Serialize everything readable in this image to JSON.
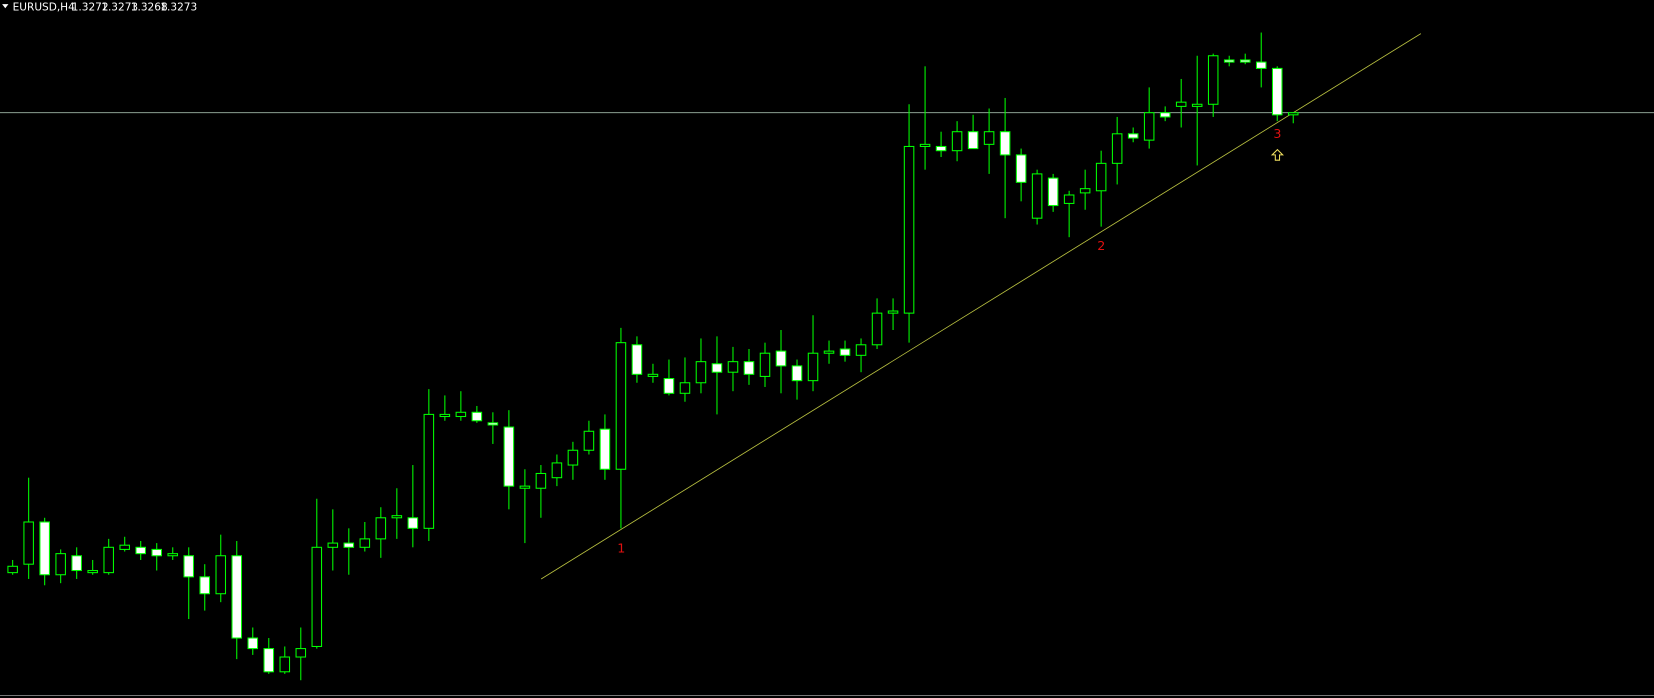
{
  "chart_data": {
    "type": "candlestick",
    "symbol": "EURUSD,H4",
    "ylim": [
      1.2996,
      1.3326
    ],
    "bull_color": "#000000",
    "bear_color": "#ffffff",
    "wick_color": "#00ff00",
    "price_line_color": "#a0b8a8",
    "annotations": [
      "1",
      "2",
      "3"
    ],
    "open": [
      1.3055,
      1.3059,
      1.3079,
      1.3054,
      1.3063,
      1.3055,
      1.3055,
      1.3066,
      1.3067,
      1.3066,
      1.3063,
      1.3063,
      1.3053,
      1.3045,
      1.3063,
      1.3024,
      1.3019,
      1.3008,
      1.3015,
      1.302,
      1.3067,
      1.3069,
      1.3067,
      1.3071,
      1.3081,
      1.3081,
      1.3076,
      1.3129,
      1.3129,
      1.3131,
      1.3126,
      1.3124,
      1.3095,
      1.3095,
      1.31,
      1.3106,
      1.3113,
      1.3123,
      1.3104,
      1.3163,
      1.3148,
      1.3147,
      1.314,
      1.3145,
      1.3154,
      1.315,
      1.3155,
      1.3148,
      1.316,
      1.3153,
      1.3146,
      1.3159,
      1.3161,
      1.3158,
      1.3163,
      1.3178,
      1.3178,
      1.3257,
      1.3257,
      1.3255,
      1.3264,
      1.3258,
      1.3264,
      1.3253,
      1.3223,
      1.3242,
      1.323,
      1.3235,
      1.3236,
      1.3249,
      1.3263,
      1.326,
      1.3273,
      1.3276,
      1.3276,
      1.3277,
      1.3298,
      1.3298,
      1.3297,
      1.3294,
      1.3272
    ],
    "high": [
      1.3061,
      1.31,
      1.3081,
      1.3066,
      1.3067,
      1.3061,
      1.3071,
      1.3072,
      1.307,
      1.3069,
      1.3067,
      1.3067,
      1.3059,
      1.3073,
      1.307,
      1.3029,
      1.3024,
      1.302,
      1.3029,
      1.309,
      1.3085,
      1.3076,
      1.3079,
      1.3086,
      1.3095,
      1.3106,
      1.3142,
      1.3139,
      1.3141,
      1.3134,
      1.3131,
      1.3132,
      1.3104,
      1.3106,
      1.3111,
      1.3117,
      1.3127,
      1.313,
      1.3171,
      1.3167,
      1.3154,
      1.3156,
      1.3157,
      1.3166,
      1.3167,
      1.3162,
      1.3161,
      1.3164,
      1.317,
      1.3156,
      1.3177,
      1.3165,
      1.3165,
      1.3166,
      1.3185,
      1.3185,
      1.3277,
      1.3295,
      1.3264,
      1.3269,
      1.3272,
      1.3275,
      1.328,
      1.3256,
      1.3246,
      1.3244,
      1.3236,
      1.3246,
      1.3255,
      1.3271,
      1.3266,
      1.3285,
      1.3276,
      1.3289,
      1.33,
      1.3301,
      1.33,
      1.3301,
      1.3311,
      1.3295,
      1.3273
    ],
    "low": [
      1.3054,
      1.3052,
      1.3049,
      1.305,
      1.3052,
      1.3054,
      1.3054,
      1.3065,
      1.3061,
      1.3056,
      1.3061,
      1.3033,
      1.3037,
      1.3041,
      1.3014,
      1.3016,
      1.3007,
      1.3007,
      1.3004,
      1.3019,
      1.3056,
      1.3054,
      1.3065,
      1.3062,
      1.3071,
      1.3067,
      1.307,
      1.3127,
      1.3127,
      1.3126,
      1.3116,
      1.3085,
      1.3069,
      1.3081,
      1.3096,
      1.3099,
      1.3111,
      1.3099,
      1.3076,
      1.3145,
      1.3145,
      1.3139,
      1.3136,
      1.314,
      1.313,
      1.3141,
      1.3144,
      1.3143,
      1.314,
      1.3137,
      1.3141,
      1.3154,
      1.3155,
      1.315,
      1.3161,
      1.317,
      1.3164,
      1.3246,
      1.3252,
      1.325,
      1.3256,
      1.3244,
      1.3223,
      1.3231,
      1.322,
      1.3226,
      1.3214,
      1.3227,
      1.3219,
      1.3239,
      1.3259,
      1.3256,
      1.3269,
      1.3266,
      1.3248,
      1.3271,
      1.3295,
      1.3296,
      1.3285,
      1.3269,
      1.3268
    ],
    "close": [
      1.3058,
      1.3079,
      1.3054,
      1.3064,
      1.3056,
      1.3056,
      1.3067,
      1.3068,
      1.3064,
      1.3063,
      1.3064,
      1.3053,
      1.3045,
      1.3063,
      1.3024,
      1.3019,
      1.3008,
      1.3015,
      1.3019,
      1.3067,
      1.3069,
      1.3067,
      1.3071,
      1.3081,
      1.3082,
      1.3076,
      1.313,
      1.313,
      1.3131,
      1.3127,
      1.3125,
      1.3096,
      1.3096,
      1.3102,
      1.3107,
      1.3113,
      1.3122,
      1.3104,
      1.3164,
      1.3149,
      1.3149,
      1.314,
      1.3145,
      1.3155,
      1.315,
      1.3155,
      1.3149,
      1.3159,
      1.3153,
      1.3146,
      1.3159,
      1.316,
      1.3158,
      1.3163,
      1.3178,
      1.3179,
      1.3257,
      1.3258,
      1.3255,
      1.3264,
      1.3256,
      1.3264,
      1.3253,
      1.324,
      1.3244,
      1.3229,
      1.3234,
      1.3237,
      1.3249,
      1.3263,
      1.3261,
      1.3273,
      1.3271,
      1.3278,
      1.3277,
      1.33,
      1.3297,
      1.3297,
      1.3294,
      1.3272,
      1.3273
    ]
  }
}
